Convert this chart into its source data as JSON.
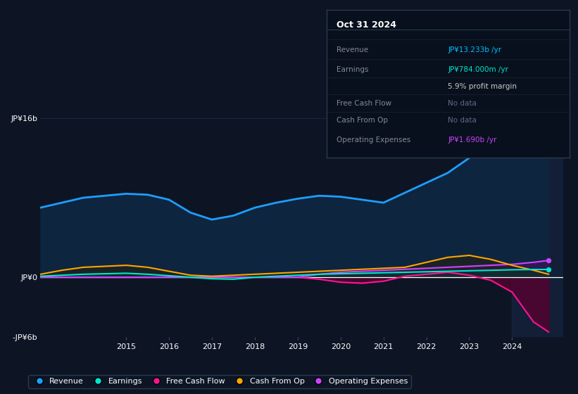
{
  "background_color": "#0d1525",
  "plot_bg_color": "#0d1525",
  "title": "Oct 31 2024",
  "ylim": [
    -6,
    16
  ],
  "info_box": {
    "title": "Oct 31 2024",
    "rows": [
      {
        "label": "Revenue",
        "value": "JP¥13.233b /yr",
        "value_color": "#00bfff",
        "dim": false
      },
      {
        "label": "Earnings",
        "value": "JP¥784.000m /yr",
        "value_color": "#00e5cc",
        "dim": false
      },
      {
        "label": "",
        "value": "5.9% profit margin",
        "value_color": "#cccccc",
        "dim": false
      },
      {
        "label": "Free Cash Flow",
        "value": "No data",
        "value_color": "#666688",
        "dim": true
      },
      {
        "label": "Cash From Op",
        "value": "No data",
        "value_color": "#666688",
        "dim": true
      },
      {
        "label": "Operating Expenses",
        "value": "JP¥1.690b /yr",
        "value_color": "#cc44ff",
        "dim": false
      }
    ]
  },
  "series": {
    "revenue": {
      "color": "#1e9eff",
      "fill_color": "#102840",
      "x": [
        2013.0,
        2013.5,
        2014.0,
        2014.5,
        2015.0,
        2015.5,
        2016.0,
        2016.5,
        2017.0,
        2017.5,
        2018.0,
        2018.5,
        2019.0,
        2019.5,
        2020.0,
        2020.5,
        2021.0,
        2021.5,
        2022.0,
        2022.5,
        2023.0,
        2023.5,
        2024.0,
        2024.5,
        2024.85
      ],
      "y": [
        7.0,
        7.5,
        8.0,
        8.2,
        8.4,
        8.3,
        7.8,
        6.5,
        5.8,
        6.2,
        7.0,
        7.5,
        7.9,
        8.2,
        8.1,
        7.8,
        7.5,
        8.5,
        9.5,
        10.5,
        12.0,
        14.5,
        15.2,
        13.5,
        13.2
      ]
    },
    "earnings": {
      "color": "#00e5cc",
      "x": [
        2013.0,
        2013.5,
        2014.0,
        2014.5,
        2015.0,
        2015.5,
        2016.0,
        2016.5,
        2017.0,
        2017.5,
        2018.0,
        2018.5,
        2019.0,
        2019.5,
        2020.0,
        2020.5,
        2021.0,
        2021.5,
        2022.0,
        2022.5,
        2023.0,
        2023.5,
        2024.0,
        2024.5,
        2024.85
      ],
      "y": [
        0.1,
        0.2,
        0.3,
        0.35,
        0.4,
        0.3,
        0.15,
        0.0,
        -0.15,
        -0.2,
        0.0,
        0.1,
        0.2,
        0.3,
        0.35,
        0.4,
        0.45,
        0.5,
        0.55,
        0.6,
        0.65,
        0.7,
        0.75,
        0.78,
        0.78
      ]
    },
    "free_cash_flow": {
      "color": "#ff1493",
      "x": [
        2013.0,
        2013.5,
        2014.0,
        2014.5,
        2015.0,
        2015.5,
        2016.0,
        2016.5,
        2017.0,
        2017.5,
        2018.0,
        2018.5,
        2019.0,
        2019.5,
        2020.0,
        2020.5,
        2021.0,
        2021.5,
        2022.0,
        2022.5,
        2023.0,
        2023.5,
        2024.0,
        2024.5,
        2024.85
      ],
      "y": [
        0.0,
        0.0,
        0.0,
        0.0,
        0.0,
        0.0,
        0.0,
        0.0,
        0.0,
        0.0,
        0.0,
        0.0,
        0.0,
        -0.2,
        -0.5,
        -0.6,
        -0.4,
        0.1,
        0.3,
        0.5,
        0.2,
        -0.3,
        -1.5,
        -4.5,
        -5.5
      ]
    },
    "cash_from_op": {
      "color": "#ffa500",
      "x": [
        2013.0,
        2013.5,
        2014.0,
        2014.5,
        2015.0,
        2015.5,
        2016.0,
        2016.5,
        2017.0,
        2017.5,
        2018.0,
        2018.5,
        2019.0,
        2019.5,
        2020.0,
        2020.5,
        2021.0,
        2021.5,
        2022.0,
        2022.5,
        2023.0,
        2023.5,
        2024.0,
        2024.5,
        2024.85
      ],
      "y": [
        0.3,
        0.7,
        1.0,
        1.1,
        1.2,
        1.0,
        0.6,
        0.2,
        0.1,
        0.2,
        0.3,
        0.4,
        0.5,
        0.6,
        0.7,
        0.8,
        0.9,
        1.0,
        1.5,
        2.0,
        2.2,
        1.8,
        1.2,
        0.7,
        0.3
      ]
    },
    "operating_expenses": {
      "color": "#cc44ff",
      "x": [
        2013.0,
        2013.5,
        2014.0,
        2014.5,
        2015.0,
        2015.5,
        2016.0,
        2016.5,
        2017.0,
        2017.5,
        2018.0,
        2018.5,
        2019.0,
        2019.5,
        2020.0,
        2020.5,
        2021.0,
        2021.5,
        2022.0,
        2022.5,
        2023.0,
        2023.5,
        2024.0,
        2024.5,
        2024.85
      ],
      "y": [
        0.0,
        0.0,
        0.0,
        0.0,
        0.0,
        0.0,
        0.0,
        0.0,
        0.0,
        0.0,
        0.0,
        0.0,
        0.0,
        0.3,
        0.5,
        0.6,
        0.7,
        0.8,
        0.9,
        1.0,
        1.1,
        1.2,
        1.3,
        1.5,
        1.69
      ]
    }
  },
  "legend": [
    {
      "label": "Revenue",
      "color": "#1e9eff"
    },
    {
      "label": "Earnings",
      "color": "#00e5cc"
    },
    {
      "label": "Free Cash Flow",
      "color": "#ff1493"
    },
    {
      "label": "Cash From Op",
      "color": "#ffa500"
    },
    {
      "label": "Operating Expenses",
      "color": "#cc44ff"
    }
  ],
  "shade_right_x": 2024.0,
  "xlim": [
    2013.0,
    2025.2
  ],
  "xtick_positions": [
    2015,
    2016,
    2017,
    2018,
    2019,
    2020,
    2021,
    2022,
    2023,
    2024
  ]
}
